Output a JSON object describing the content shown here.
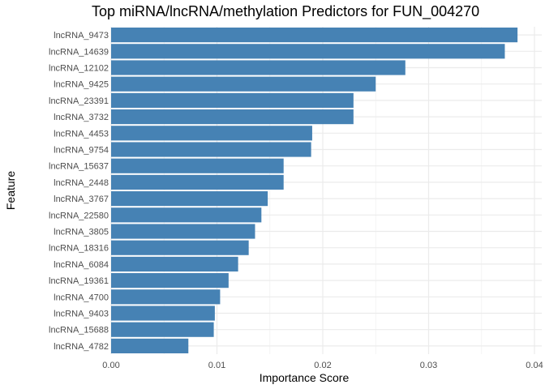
{
  "chart_data": {
    "type": "bar",
    "orientation": "horizontal",
    "title": "Top miRNA/lncRNA/methylation Predictors for FUN_004270",
    "xlabel": "Importance Score",
    "ylabel": "Feature",
    "xlim": [
      0,
      0.04
    ],
    "xticks": [
      0.0,
      0.01,
      0.02,
      0.03,
      0.04
    ],
    "xtick_labels": [
      "0.00",
      "0.01",
      "0.02",
      "0.03",
      "0.04"
    ],
    "grid": true,
    "bar_color": "#4682B4",
    "categories": [
      "lncRNA_9473",
      "lncRNA_14639",
      "lncRNA_12102",
      "lncRNA_9425",
      "lncRNA_23391",
      "lncRNA_3732",
      "lncRNA_4453",
      "lncRNA_9754",
      "lncRNA_15637",
      "lncRNA_2448",
      "lncRNA_3767",
      "lncRNA_22580",
      "lncRNA_3805",
      "lncRNA_18316",
      "lncRNA_6084",
      "lncRNA_19361",
      "lncRNA_4700",
      "lncRNA_9403",
      "lncRNA_15688",
      "lncRNA_4782"
    ],
    "values": [
      0.0384,
      0.0372,
      0.0278,
      0.025,
      0.0229,
      0.0229,
      0.019,
      0.0189,
      0.0163,
      0.0163,
      0.0148,
      0.0142,
      0.0136,
      0.013,
      0.012,
      0.0111,
      0.0103,
      0.0098,
      0.0097,
      0.0073
    ]
  }
}
